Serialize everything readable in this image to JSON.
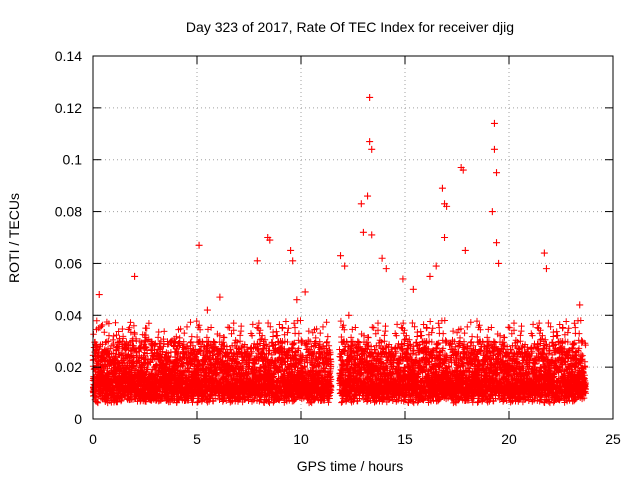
{
  "chart_data": {
    "type": "scatter",
    "title": "Day 323 of 2017, Rate Of TEC Index for receiver djig",
    "xlabel": "GPS time / hours",
    "ylabel": "ROTI / TECUs",
    "xlim": [
      0,
      25
    ],
    "ylim": [
      0,
      0.14
    ],
    "xticks": [
      0,
      5,
      10,
      15,
      20,
      25
    ],
    "xtick_labels": [
      "0",
      "5",
      "10",
      "15",
      "20",
      "25"
    ],
    "yticks": [
      0,
      0.02,
      0.04,
      0.06,
      0.08,
      0.1,
      0.12,
      0.14
    ],
    "ytick_labels": [
      "0",
      "0.02",
      "0.04",
      "0.06",
      "0.08",
      "0.1",
      "0.12",
      "0.14"
    ],
    "grid": true,
    "marker": "+",
    "color": "#ff0000",
    "series": [
      {
        "name": "ROTI",
        "x": [
          0.3,
          2.0,
          5.1,
          5.5,
          6.1,
          7.9,
          8.4,
          8.5,
          9.5,
          9.6,
          9.8,
          10.2,
          11.9,
          12.1,
          12.3,
          12.9,
          13.0,
          13.2,
          13.3,
          13.3,
          13.4,
          13.4,
          13.9,
          14.1,
          14.9,
          15.4,
          16.2,
          16.5,
          16.8,
          16.9,
          16.9,
          17.0,
          17.7,
          17.8,
          17.9,
          19.2,
          19.3,
          19.3,
          19.4,
          19.4,
          19.5,
          21.7,
          21.8,
          23.4
        ],
        "y": [
          0.048,
          0.055,
          0.067,
          0.042,
          0.047,
          0.061,
          0.07,
          0.069,
          0.065,
          0.061,
          0.046,
          0.049,
          0.063,
          0.059,
          0.04,
          0.083,
          0.072,
          0.086,
          0.124,
          0.107,
          0.104,
          0.071,
          0.062,
          0.058,
          0.054,
          0.05,
          0.055,
          0.059,
          0.089,
          0.083,
          0.07,
          0.082,
          0.097,
          0.096,
          0.065,
          0.08,
          0.114,
          0.104,
          0.095,
          0.068,
          0.06,
          0.064,
          0.058,
          0.044
        ]
      }
    ]
  }
}
